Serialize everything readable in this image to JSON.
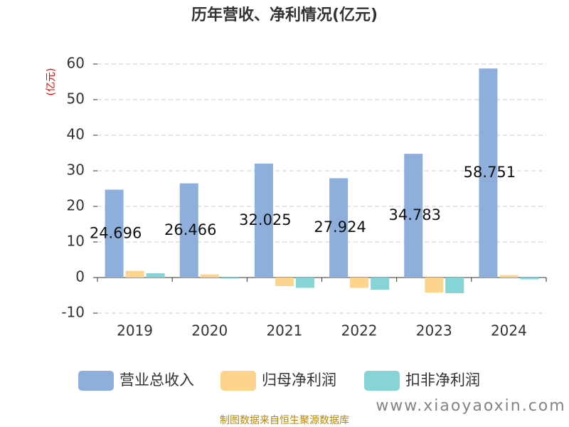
{
  "chart_data": {
    "type": "bar",
    "title": "历年营收、净利情况(亿元)",
    "y_label": "(亿元)",
    "categories": [
      "2019",
      "2020",
      "2021",
      "2022",
      "2023",
      "2024"
    ],
    "series": [
      {
        "name": "营业总收入",
        "color": "#8eaedb",
        "values": [
          24.696,
          26.466,
          32.025,
          27.924,
          34.783,
          58.751
        ],
        "show_labels": true
      },
      {
        "name": "归母净利润",
        "color": "#fdd48e",
        "values": [
          1.9,
          0.9,
          -2.4,
          -2.9,
          -4.2,
          0.7
        ]
      },
      {
        "name": "扣非净利润",
        "color": "#87d4d6",
        "values": [
          1.2,
          -0.3,
          -2.9,
          -3.4,
          -4.4,
          -0.5
        ]
      }
    ],
    "ylim": [
      -10,
      60
    ],
    "yticks": [
      -10,
      0,
      10,
      20,
      30,
      40,
      50,
      60
    ],
    "grid": true,
    "legend": "bottom",
    "source": "制图数据来自恒生聚源数据库",
    "watermark": "www.xiaoyaoxin.com"
  }
}
